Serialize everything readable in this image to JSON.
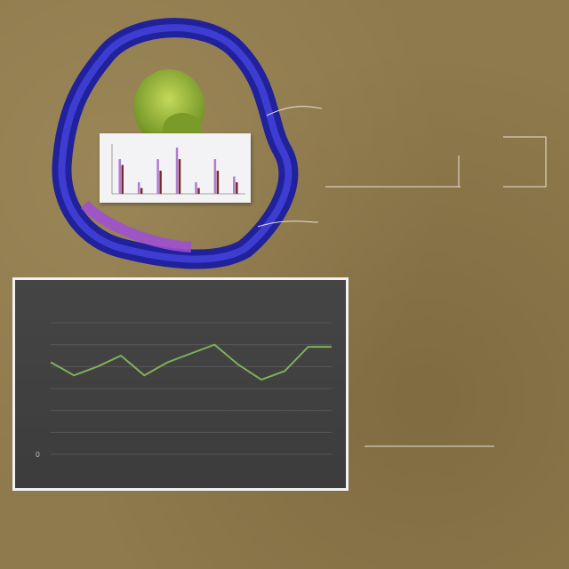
{
  "annotations": {
    "top_right": [
      "",
      "",
      ""
    ],
    "middle_right": [
      "",
      ""
    ],
    "lower_right": [
      "",
      ""
    ],
    "footer": ""
  },
  "mini_chart": {
    "type": "bar",
    "categories": [
      "",
      "",
      "",
      "",
      "",
      "",
      ""
    ],
    "series": [
      {
        "values": [
          6,
          2,
          6,
          8,
          2,
          6,
          3
        ],
        "color": "#b07bd0"
      },
      {
        "values": [
          5,
          1,
          4,
          6,
          1,
          4,
          2
        ],
        "color": "#7a2a2a"
      }
    ],
    "colors": {
      "blob_outer": "#2a2ab8",
      "blob_inner": "#9a4ad0",
      "head": "#8bb33a"
    }
  },
  "chart_data": {
    "type": "line",
    "title": "",
    "xlabel": "",
    "ylabel": "",
    "categories": [
      "",
      "",
      "",
      "",
      "",
      "",
      "",
      "",
      "",
      "",
      "",
      "",
      ""
    ],
    "y_ticks": [
      "0",
      "",
      "",
      "",
      "",
      "",
      ""
    ],
    "ylim": [
      0,
      6
    ],
    "grid": true,
    "series": [
      {
        "values": [
          4.2,
          3.6,
          4.0,
          4.5,
          3.6,
          4.2,
          4.6,
          5.0,
          4.1,
          3.4,
          3.8,
          4.9,
          4.9
        ],
        "color": "#7fb05a"
      }
    ]
  }
}
